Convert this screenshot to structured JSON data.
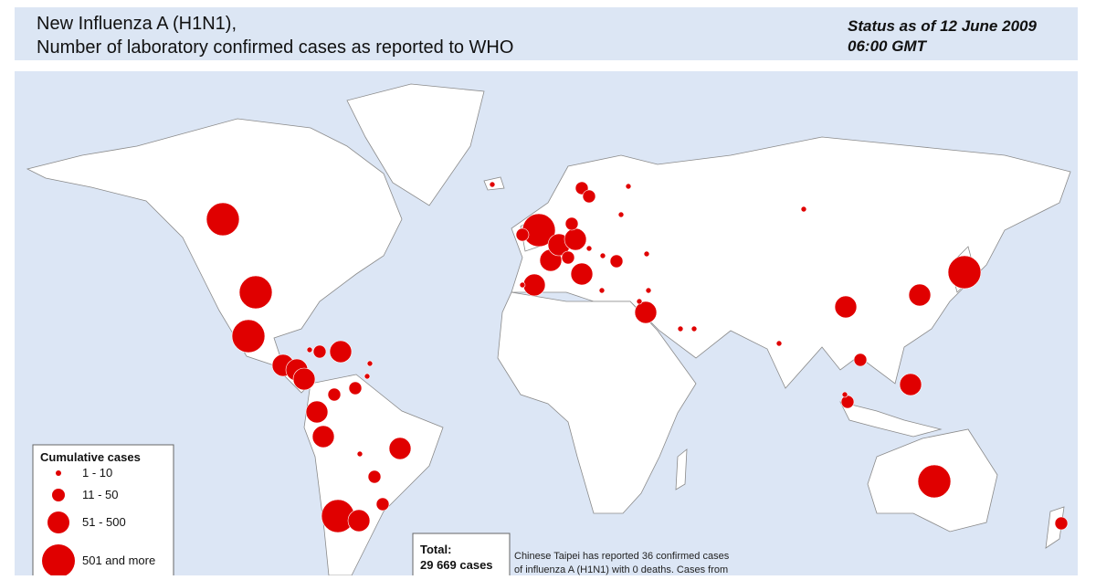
{
  "header": {
    "title_lines": [
      "New Influenza A (H1N1),",
      "Number of  laboratory confirmed cases as reported to WHO"
    ],
    "status_lines": [
      "Status as of 12 June 2009",
      "06:00 GMT"
    ]
  },
  "legend": {
    "title": "Cumulative cases",
    "items": [
      "1 - 10",
      "11 - 50",
      "51 - 500",
      "501 and more"
    ]
  },
  "total": {
    "label": "Total:",
    "cases": "29 669 cases"
  },
  "note": {
    "lines": [
      "Chinese Taipei has reported 36 confirmed cases",
      "of influenza A (H1N1) with 0 deaths. Cases from"
    ]
  }
}
